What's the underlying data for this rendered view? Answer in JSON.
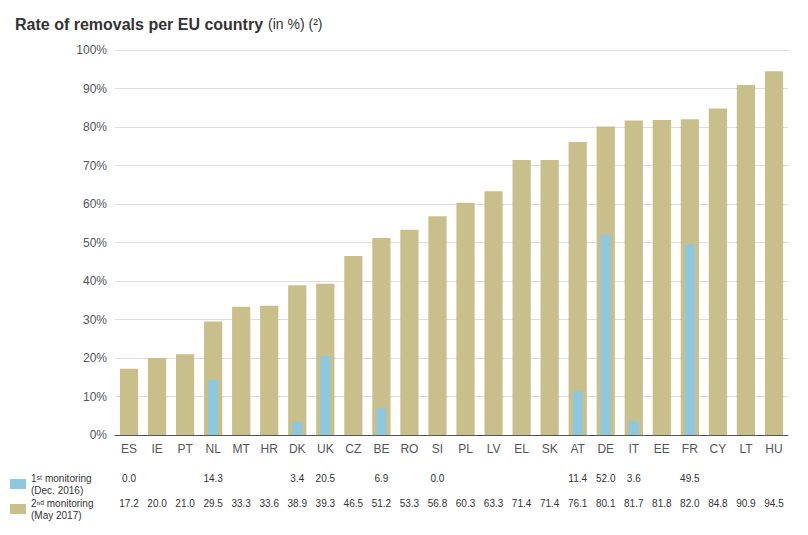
{
  "chart_data": {
    "type": "bar",
    "title": "Rate of removals per EU country",
    "subtitle": "(in %) (²)",
    "categories": [
      "ES",
      "IE",
      "PT",
      "NL",
      "MT",
      "HR",
      "DK",
      "UK",
      "CZ",
      "BE",
      "RO",
      "SI",
      "PL",
      "LV",
      "EL",
      "SK",
      "AT",
      "DE",
      "IT",
      "EE",
      "FR",
      "CY",
      "LT",
      "HU"
    ],
    "series": [
      {
        "name": "1ˢᵗ monitoring\n(Dec. 2016)",
        "color": "#8ec8e0",
        "values": [
          0.0,
          null,
          null,
          14.3,
          null,
          null,
          3.4,
          20.5,
          null,
          6.9,
          null,
          0.0,
          null,
          null,
          null,
          null,
          11.4,
          52.0,
          3.6,
          null,
          49.5,
          null,
          null,
          null
        ],
        "value_labels": [
          "0.0",
          null,
          null,
          "14.3",
          null,
          null,
          "3.4",
          "20.5",
          null,
          "6.9",
          null,
          "0.0",
          null,
          null,
          null,
          null,
          "11.4",
          "52.0",
          "3.6",
          null,
          "49.5",
          null,
          null,
          null
        ]
      },
      {
        "name": "2ⁿᵈ monitoring\n(May 2017)",
        "color": "#c8bf8a",
        "values": [
          17.2,
          20.0,
          21.0,
          29.5,
          33.3,
          33.6,
          38.9,
          39.3,
          46.5,
          51.2,
          53.3,
          56.8,
          60.3,
          63.3,
          71.4,
          71.4,
          76.1,
          80.1,
          81.7,
          81.8,
          82.0,
          84.8,
          90.9,
          94.5
        ],
        "value_labels": [
          "17.2",
          "20.0",
          "21.0",
          "29.5",
          "33.3",
          "33.6",
          "38.9",
          "39.3",
          "46.5",
          "51.2",
          "53.3",
          "56.8",
          "60.3",
          "63.3",
          "71.4",
          "71.4",
          "76.1",
          "80.1",
          "81.7",
          "81.8",
          "82.0",
          "84.8",
          "90.9",
          "94.5"
        ]
      }
    ],
    "ylim": [
      0,
      100
    ],
    "yticks": [
      {
        "value": 0,
        "label": "0%"
      },
      {
        "value": 10,
        "label": "10%"
      },
      {
        "value": 20,
        "label": "20%"
      },
      {
        "value": 30,
        "label": "30%"
      },
      {
        "value": 40,
        "label": "40%"
      },
      {
        "value": 50,
        "label": "50%"
      },
      {
        "value": 60,
        "label": "60%"
      },
      {
        "value": 70,
        "label": "70%"
      },
      {
        "value": 80,
        "label": "80%"
      },
      {
        "value": 90,
        "label": "90%"
      },
      {
        "value": 100,
        "label": "100%"
      }
    ],
    "grid": true,
    "legend": "lower left"
  }
}
